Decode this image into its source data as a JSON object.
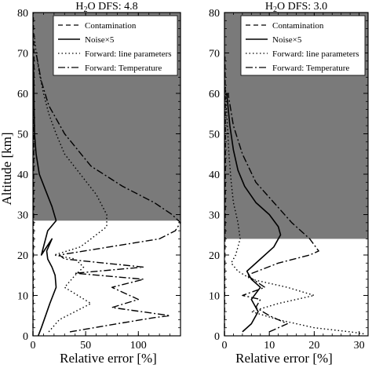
{
  "figure": {
    "ylabel": "Altitude [km]",
    "xlabel": "Relative error [%]"
  },
  "chart_data": [
    {
      "type": "line",
      "title_prefix": "H",
      "title_sub": "2",
      "title_suffix": "O DFS: 4.8",
      "xlabel": "Relative error [%]",
      "ylabel": "Altitude [km]",
      "xlim": [
        0,
        140
      ],
      "ylim": [
        0,
        80
      ],
      "xticks": [
        0,
        50,
        100
      ],
      "yticks": [
        0,
        10,
        20,
        30,
        40,
        50,
        60,
        70,
        80
      ],
      "shade_above_km": 28.5,
      "legend_position": "top-right",
      "series": [
        {
          "name": "Contamination",
          "style": "dashed",
          "x": [
            0,
            0.1,
            0.2,
            0.3,
            0.4,
            0.5,
            0.6,
            0.7,
            0.8,
            0.9,
            1.0,
            0.6,
            0.3
          ],
          "y": [
            0,
            5,
            10,
            15,
            20,
            25,
            30,
            40,
            50,
            60,
            70,
            75,
            80
          ]
        },
        {
          "name": "Noise×5",
          "style": "solid",
          "x": [
            5,
            8,
            12,
            16,
            22,
            21,
            18,
            14,
            13,
            18,
            8,
            14,
            22,
            18,
            12,
            6,
            3,
            1.5,
            0.8,
            0.3
          ],
          "y": [
            0,
            2,
            5,
            8,
            12,
            15,
            17,
            19,
            21,
            24,
            20,
            26,
            28.5,
            32,
            36,
            40,
            45,
            50,
            60,
            68
          ]
        },
        {
          "name": "Forward: line parameters",
          "style": "dotted",
          "x": [
            15,
            25,
            55,
            30,
            40,
            48,
            40,
            20,
            45,
            55,
            70,
            70,
            60,
            45,
            30,
            22,
            15,
            10,
            6,
            3,
            1
          ],
          "y": [
            1,
            4,
            8,
            12,
            15,
            17,
            19,
            20,
            22,
            24,
            27,
            30,
            35,
            40,
            45,
            50,
            55,
            60,
            65,
            70,
            75
          ]
        },
        {
          "name": "Forward: Temperature",
          "style": "dashdot",
          "x": [
            35,
            80,
            115,
            130,
            75,
            100,
            75,
            105,
            40,
            105,
            30,
            25,
            120,
            135,
            140,
            132,
            115,
            85,
            55,
            30,
            15,
            8,
            3
          ],
          "y": [
            1,
            3,
            4.5,
            5,
            7,
            9,
            12,
            14,
            15.5,
            17,
            19,
            20,
            24,
            26,
            28,
            30,
            33,
            37,
            42,
            50,
            57,
            63,
            70
          ]
        }
      ]
    },
    {
      "type": "line",
      "title_prefix": "H",
      "title_sub": "2",
      "title_suffix": "O DFS: 3.0",
      "xlabel": "Relative error [%]",
      "ylabel": "Altitude [km]",
      "xlim": [
        0,
        32
      ],
      "ylim": [
        0,
        80
      ],
      "xticks": [
        0,
        10,
        20,
        30
      ],
      "yticks": [
        0,
        10,
        20,
        30,
        40,
        50,
        60,
        70,
        80
      ],
      "shade_above_km": 24,
      "legend_position": "top-right",
      "series": [
        {
          "name": "Contamination",
          "style": "dashed",
          "x": [
            0,
            0.05,
            0.1,
            0.15,
            0.2,
            0.2,
            0.15,
            0.1
          ],
          "y": [
            0,
            10,
            20,
            30,
            40,
            50,
            60,
            70
          ]
        },
        {
          "name": "Noise×5",
          "style": "solid",
          "x": [
            4,
            6,
            7.5,
            6,
            8,
            6,
            5,
            8,
            11,
            12.5,
            12,
            10,
            7,
            4.5,
            3,
            2,
            1.2,
            0.5
          ],
          "y": [
            1,
            3,
            6,
            9,
            12,
            14,
            16,
            19,
            22,
            25,
            27,
            30,
            33,
            37,
            41,
            46,
            52,
            60
          ]
        },
        {
          "name": "Forward: line parameters",
          "style": "dotted",
          "x": [
            31,
            28,
            20,
            12,
            6,
            12,
            20,
            14,
            6,
            3,
            1.5,
            2.5,
            3.5,
            3,
            2,
            1.5,
            1,
            0.5,
            0.2
          ],
          "y": [
            0.5,
            1,
            2,
            4,
            6,
            8,
            10,
            12,
            14,
            16,
            18,
            20,
            24,
            28,
            33,
            38,
            45,
            55,
            62
          ]
        },
        {
          "name": "Forward: Temperature",
          "style": "dashdot",
          "x": [
            10,
            14,
            10,
            7,
            8,
            4,
            9,
            5,
            12,
            19,
            21,
            19,
            15,
            11,
            7,
            4,
            2,
            0.8
          ],
          "y": [
            1,
            3,
            5,
            7,
            9,
            10,
            12,
            15,
            18,
            20,
            21,
            24,
            28,
            33,
            38,
            45,
            52,
            60
          ]
        }
      ]
    }
  ]
}
